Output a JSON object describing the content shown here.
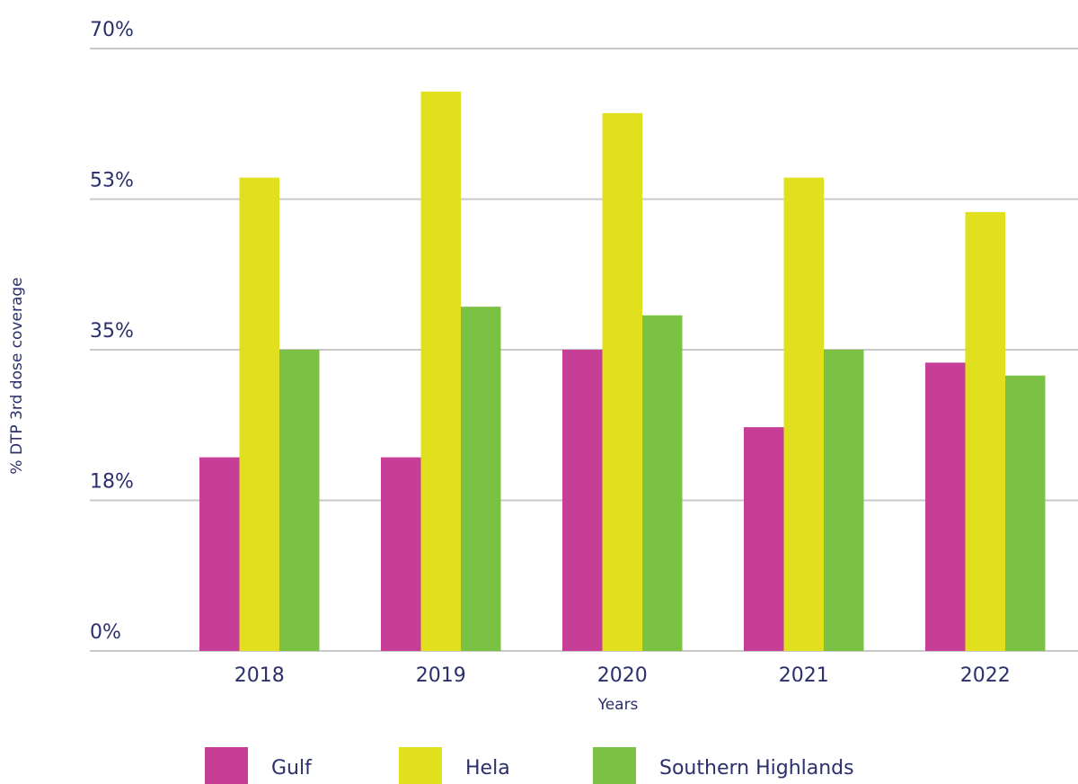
{
  "chart_data": {
    "type": "bar",
    "title": "",
    "xlabel": "Years",
    "ylabel": "% DTP 3rd dose coverage",
    "ylim": [
      0,
      70
    ],
    "yticks": [
      "0%",
      "18%",
      "35%",
      "53%",
      "70%"
    ],
    "ytick_values": [
      0,
      17.5,
      35,
      52.5,
      70
    ],
    "categories": [
      "2018",
      "2019",
      "2020",
      "2021",
      "2022"
    ],
    "series": [
      {
        "name": "Gulf",
        "color": "#c63e96",
        "values": [
          22.5,
          22.5,
          35,
          26,
          33.5
        ]
      },
      {
        "name": "Hela",
        "color": "#e0e01e",
        "values": [
          55,
          65,
          62.5,
          55,
          51
        ]
      },
      {
        "name": "Southern Highlands",
        "color": "#7bc143",
        "values": [
          35,
          40,
          39,
          35,
          32
        ]
      }
    ],
    "grid": true,
    "legend_position": "bottom"
  }
}
